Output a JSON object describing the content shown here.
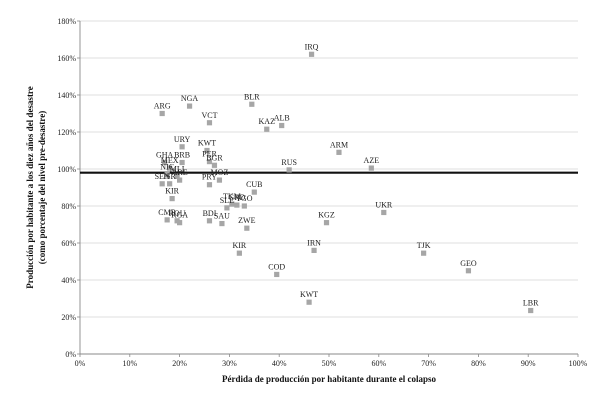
{
  "chart_data": {
    "type": "scatter",
    "title": "",
    "xlabel": "Pérdida de producción por habitante durante el colapso",
    "ylabel_lines": [
      "Producción por habitante a los diez años del desastre",
      "(como porcentaje del nivel pre-desastre)"
    ],
    "xlim": [
      0,
      100
    ],
    "ylim": [
      0,
      180
    ],
    "x_ticks": [
      0,
      10,
      20,
      30,
      40,
      50,
      60,
      70,
      80,
      90,
      100
    ],
    "y_ticks": [
      0,
      20,
      40,
      60,
      80,
      100,
      120,
      140,
      160,
      180
    ],
    "x_tick_labels": [
      "0%",
      "10%",
      "20%",
      "30%",
      "40%",
      "50%",
      "60%",
      "70%",
      "80%",
      "90%",
      "100%"
    ],
    "y_tick_labels": [
      "0%",
      "20%",
      "40%",
      "60%",
      "80%",
      "100%",
      "120%",
      "140%",
      "160%",
      "180%"
    ],
    "grid": "horizontal",
    "reference_line_y": 98,
    "marker_color": "#a6a6a6",
    "points": [
      {
        "label": "IRQ",
        "x": 46.5,
        "y": 162
      },
      {
        "label": "ARG",
        "x": 16.5,
        "y": 130
      },
      {
        "label": "NGA",
        "x": 22.0,
        "y": 134
      },
      {
        "label": "BLR",
        "x": 34.5,
        "y": 135
      },
      {
        "label": "VCT",
        "x": 26.0,
        "y": 125
      },
      {
        "label": "ALB",
        "x": 40.5,
        "y": 123.5
      },
      {
        "label": "KAZ",
        "x": 37.5,
        "y": 121.5
      },
      {
        "label": "URY",
        "x": 20.5,
        "y": 112
      },
      {
        "label": "KWT",
        "x": 25.5,
        "y": 110
      },
      {
        "label": "ARM",
        "x": 52.0,
        "y": 109
      },
      {
        "label": "GHA",
        "x": 17.0,
        "y": 103.5
      },
      {
        "label": "BRB",
        "x": 20.5,
        "y": 103.5
      },
      {
        "label": "PER",
        "x": 26.0,
        "y": 104
      },
      {
        "label": "BGR",
        "x": 27.0,
        "y": 102
      },
      {
        "label": "AZE",
        "x": 58.5,
        "y": 100.5
      },
      {
        "label": "RUS",
        "x": 42.0,
        "y": 99.5
      },
      {
        "label": "MEX",
        "x": 18.0,
        "y": 100.5
      },
      {
        "label": "NIC",
        "x": 17.5,
        "y": 97
      },
      {
        "label": "MLI",
        "x": 19.5,
        "y": 96
      },
      {
        "label": "ARE",
        "x": 20.0,
        "y": 94
      },
      {
        "label": "MOZ",
        "x": 28.0,
        "y": 94
      },
      {
        "label": "PRY",
        "x": 26.0,
        "y": 91.5
      },
      {
        "label": "ISR",
        "x": 18.0,
        "y": 92
      },
      {
        "label": "SEN",
        "x": 16.5,
        "y": 92
      },
      {
        "label": "CUB",
        "x": 35.0,
        "y": 87.5
      },
      {
        "label": "KIR",
        "x": 18.5,
        "y": 84
      },
      {
        "label": "TKM",
        "x": 30.5,
        "y": 81
      },
      {
        "label": "GRD",
        "x": 31.5,
        "y": 80.5
      },
      {
        "label": "TGO",
        "x": 33.0,
        "y": 80
      },
      {
        "label": "UKR",
        "x": 61.0,
        "y": 76.5
      },
      {
        "label": "SLE",
        "x": 29.5,
        "y": 79
      },
      {
        "label": "CMR",
        "x": 17.5,
        "y": 72.5
      },
      {
        "label": "ROU",
        "x": 19.5,
        "y": 72
      },
      {
        "label": "RGA",
        "x": 20.0,
        "y": 71
      },
      {
        "label": "BDI",
        "x": 26.0,
        "y": 72
      },
      {
        "label": "SAU",
        "x": 28.5,
        "y": 70.5
      },
      {
        "label": "KGZ",
        "x": 49.5,
        "y": 71
      },
      {
        "label": "ZWE",
        "x": 33.5,
        "y": 68
      },
      {
        "label": "IRN",
        "x": 47.0,
        "y": 56
      },
      {
        "label": "KIR",
        "x": 32.0,
        "y": 54.5
      },
      {
        "label": "TJK",
        "x": 69.0,
        "y": 54.5
      },
      {
        "label": "COD",
        "x": 39.5,
        "y": 43
      },
      {
        "label": "GEO",
        "x": 78.0,
        "y": 45
      },
      {
        "label": "KWT",
        "x": 46.0,
        "y": 28
      },
      {
        "label": "LBR",
        "x": 90.5,
        "y": 23.5
      }
    ]
  }
}
